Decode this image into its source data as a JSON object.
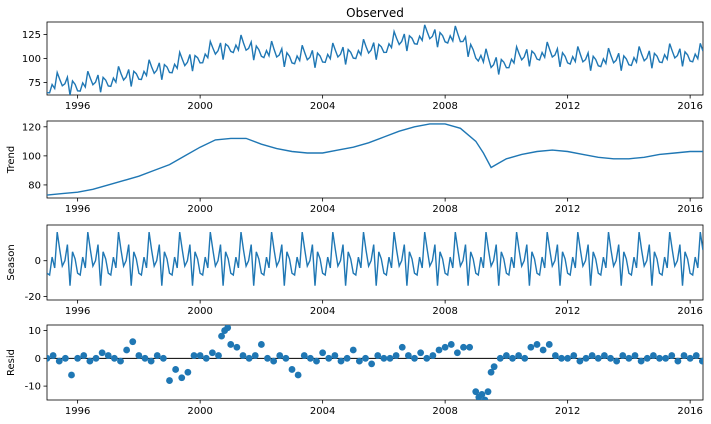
{
  "figure": {
    "title": "Observed"
  },
  "chart_data": [
    {
      "type": "line",
      "title": "Observed",
      "ylabel": "",
      "color": "#1f77b4",
      "xlim": [
        1995.0,
        2016.42
      ],
      "ylim": [
        62,
        138
      ],
      "yticks": [
        75,
        100,
        125
      ],
      "x": [
        1995.0,
        1995.5,
        1996.0,
        1996.5,
        1997.0,
        1997.5,
        1998.0,
        1998.5,
        1999.0,
        1999.5,
        2000.0,
        2000.5,
        2001.0,
        2001.5,
        2002.0,
        2002.5,
        2003.0,
        2003.5,
        2004.0,
        2004.5,
        2005.0,
        2005.5,
        2006.0,
        2006.5,
        2007.0,
        2007.5,
        2008.0,
        2008.5,
        2009.0,
        2009.5,
        2010.0,
        2010.5,
        2011.0,
        2011.5,
        2012.0,
        2012.5,
        2013.0,
        2013.5,
        2014.0,
        2014.5,
        2015.0,
        2015.5,
        2016.0
      ],
      "values": [
        70,
        74,
        72,
        75,
        77,
        80,
        84,
        87,
        91,
        95,
        101,
        107,
        113,
        111,
        108,
        104,
        101,
        101,
        102,
        104,
        106,
        108,
        112,
        117,
        121,
        123,
        123,
        120,
        106,
        93,
        96,
        101,
        105,
        104,
        101,
        99,
        98,
        98,
        99,
        100,
        102,
        103,
        103
      ]
    },
    {
      "type": "line",
      "title": "",
      "ylabel": "Trend",
      "color": "#1f77b4",
      "xlim": [
        1995.0,
        2016.42
      ],
      "ylim": [
        71,
        124
      ],
      "yticks": [
        80,
        100,
        120
      ],
      "x": [
        1995.0,
        1995.5,
        1996.0,
        1996.5,
        1997.0,
        1997.5,
        1998.0,
        1998.5,
        1999.0,
        1999.5,
        2000.0,
        2000.5,
        2001.0,
        2001.5,
        2002.0,
        2002.5,
        2003.0,
        2003.5,
        2004.0,
        2004.5,
        2005.0,
        2005.5,
        2006.0,
        2006.5,
        2007.0,
        2007.5,
        2008.0,
        2008.5,
        2009.0,
        2009.25,
        2009.5,
        2009.75,
        2010.0,
        2010.5,
        2011.0,
        2011.5,
        2012.0,
        2012.5,
        2013.0,
        2013.5,
        2014.0,
        2014.5,
        2015.0,
        2015.5,
        2016.0,
        2016.42
      ],
      "values": [
        73,
        74,
        75,
        77,
        80,
        83,
        86,
        90,
        94,
        100,
        106,
        111,
        112,
        112,
        108,
        105,
        103,
        102,
        102,
        104,
        106,
        109,
        113,
        117,
        120,
        122,
        122,
        119,
        110,
        102,
        92,
        95,
        98,
        101,
        103,
        104,
        103,
        101,
        99,
        98,
        98,
        99,
        101,
        102,
        103,
        103
      ]
    },
    {
      "type": "line",
      "title": "",
      "ylabel": "Season",
      "color": "#1f77b4",
      "xlim": [
        1995.0,
        2016.42
      ],
      "ylim": [
        -22,
        20
      ],
      "yticks": [
        -20,
        0
      ],
      "period_months": 12,
      "x_start": 1995.0,
      "x_step": 0.0833,
      "monthly_pattern": [
        -7,
        -8,
        2,
        -4,
        16,
        6,
        -3,
        0,
        9,
        -14,
        5,
        1
      ]
    },
    {
      "type": "scatter",
      "title": "",
      "ylabel": "Resid",
      "color": "#1f77b4",
      "xlim": [
        1995.0,
        2016.42
      ],
      "ylim": [
        -15,
        12
      ],
      "yticks": [
        -10,
        0,
        10
      ],
      "baseline": 0,
      "x": [
        1995.0,
        1995.2,
        1995.4,
        1995.6,
        1995.8,
        1996.0,
        1996.2,
        1996.4,
        1996.6,
        1996.8,
        1997.0,
        1997.2,
        1997.4,
        1997.6,
        1997.8,
        1998.0,
        1998.2,
        1998.4,
        1998.6,
        1998.8,
        1999.0,
        1999.2,
        1999.4,
        1999.6,
        1999.8,
        2000.0,
        2000.2,
        2000.4,
        2000.6,
        2000.7,
        2000.8,
        2000.9,
        2001.0,
        2001.2,
        2001.4,
        2001.6,
        2001.8,
        2002.0,
        2002.2,
        2002.4,
        2002.6,
        2002.8,
        2003.0,
        2003.2,
        2003.4,
        2003.6,
        2003.8,
        2004.0,
        2004.2,
        2004.4,
        2004.6,
        2004.8,
        2005.0,
        2005.2,
        2005.4,
        2005.6,
        2005.8,
        2006.0,
        2006.2,
        2006.4,
        2006.6,
        2006.8,
        2007.0,
        2007.2,
        2007.4,
        2007.6,
        2007.8,
        2008.0,
        2008.2,
        2008.4,
        2008.6,
        2008.8,
        2009.0,
        2009.1,
        2009.2,
        2009.3,
        2009.4,
        2009.5,
        2009.6,
        2009.8,
        2010.0,
        2010.2,
        2010.4,
        2010.6,
        2010.8,
        2011.0,
        2011.2,
        2011.4,
        2011.6,
        2011.8,
        2012.0,
        2012.2,
        2012.4,
        2012.6,
        2012.8,
        2013.0,
        2013.2,
        2013.4,
        2013.6,
        2013.8,
        2014.0,
        2014.2,
        2014.4,
        2014.6,
        2014.8,
        2015.0,
        2015.2,
        2015.4,
        2015.6,
        2015.8,
        2016.0,
        2016.2,
        2016.4
      ],
      "values": [
        0,
        1,
        -1,
        0,
        -6,
        0,
        1,
        -1,
        0,
        2,
        1,
        0,
        -1,
        3,
        6,
        1,
        0,
        -1,
        1,
        0,
        -8,
        -4,
        -7,
        -5,
        1,
        1,
        0,
        2,
        1,
        8,
        10,
        11,
        5,
        4,
        1,
        0,
        1,
        5,
        0,
        -1,
        1,
        0,
        -4,
        -6,
        1,
        0,
        -1,
        2,
        0,
        1,
        -1,
        0,
        3,
        -1,
        0,
        -2,
        1,
        0,
        0,
        1,
        4,
        1,
        0,
        2,
        0,
        1,
        3,
        4,
        5,
        2,
        4,
        4,
        -12,
        -14,
        -13,
        -15,
        -12,
        -5,
        -3,
        0,
        1,
        0,
        1,
        0,
        4,
        5,
        3,
        5,
        1,
        0,
        0,
        1,
        -1,
        0,
        1,
        0,
        1,
        0,
        -1,
        1,
        0,
        1,
        -1,
        0,
        1,
        0,
        0,
        1,
        -1,
        1,
        0,
        1,
        -1
      ]
    }
  ],
  "x_axis": {
    "tick_labels": [
      "1996",
      "2000",
      "2004",
      "2008",
      "2012",
      "2016"
    ],
    "tick_values": [
      1996,
      2000,
      2004,
      2008,
      2012,
      2016
    ]
  }
}
